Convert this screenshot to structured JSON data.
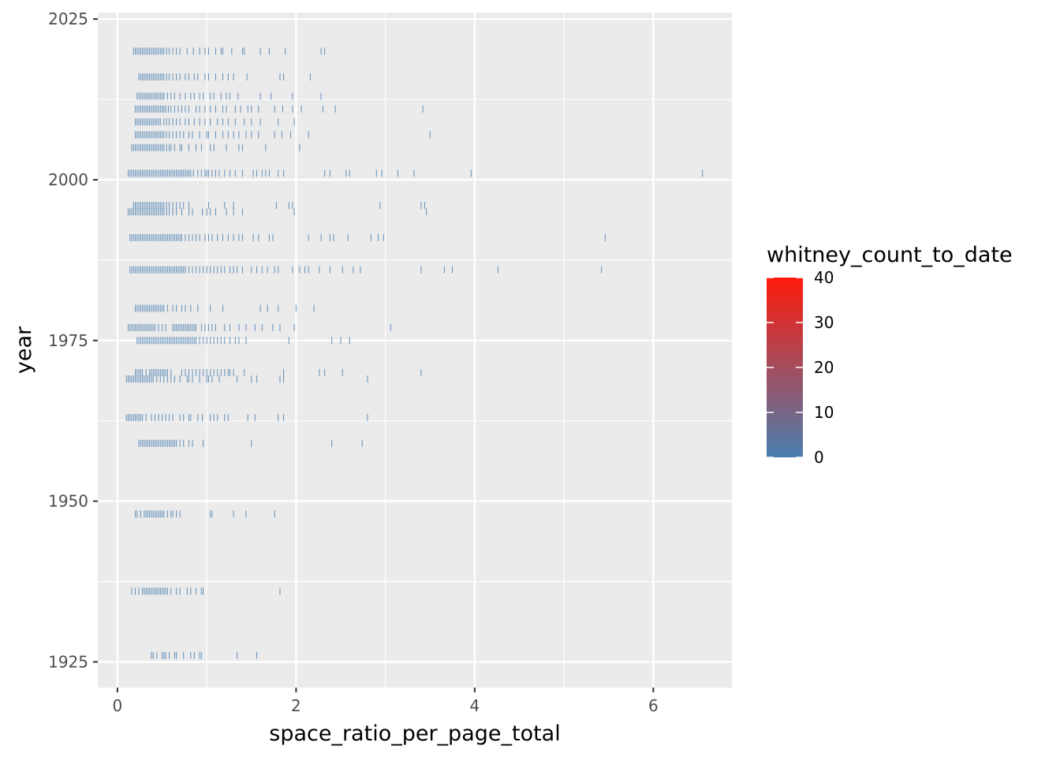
{
  "chart_data": {
    "type": "scatter",
    "mark": "vertical tick",
    "xlabel": "space_ratio_per_page_total",
    "ylabel": "year",
    "xlim": [
      -0.22,
      6.88
    ],
    "ylim": [
      1921,
      2026
    ],
    "x_ticks": [
      0,
      2,
      4,
      6
    ],
    "x_tick_labels": [
      "0",
      "2",
      "4",
      "6"
    ],
    "y_ticks": [
      1925,
      1950,
      1975,
      2000,
      2025
    ],
    "y_tick_labels": [
      "1925",
      "1950",
      "1975",
      "2000",
      "2025"
    ],
    "grid": true,
    "color_scale": {
      "title": "whitney_count_to_date",
      "low": 0,
      "high": 40,
      "low_color": "#4a7fb0",
      "high_color": "#ff1a0a",
      "ticks": [
        0,
        10,
        20,
        30,
        40
      ],
      "tick_labels": [
        "0",
        "10",
        "20",
        "30",
        "40"
      ],
      "legend_position": "right"
    },
    "series": [
      {
        "year": 2020,
        "x": [
          0.18,
          0.2,
          0.22,
          0.24,
          0.26,
          0.28,
          0.3,
          0.32,
          0.34,
          0.36,
          0.38,
          0.4,
          0.42,
          0.44,
          0.46,
          0.48,
          0.5,
          0.52,
          0.55,
          0.58,
          0.62,
          0.66,
          0.7,
          0.78,
          0.85,
          0.92,
          0.98,
          1.02,
          1.1,
          1.16,
          1.18,
          1.28,
          1.4,
          1.42,
          1.6,
          1.7,
          1.88,
          2.28,
          2.32
        ]
      },
      {
        "year": 2016,
        "x": [
          0.24,
          0.26,
          0.28,
          0.3,
          0.32,
          0.34,
          0.36,
          0.38,
          0.4,
          0.42,
          0.44,
          0.46,
          0.48,
          0.5,
          0.52,
          0.55,
          0.58,
          0.62,
          0.66,
          0.7,
          0.76,
          0.8,
          0.86,
          0.9,
          0.98,
          1.02,
          1.1,
          1.18,
          1.24,
          1.3,
          1.45,
          1.82,
          1.86,
          2.16
        ]
      },
      {
        "year": 2013,
        "x": [
          0.22,
          0.24,
          0.26,
          0.28,
          0.3,
          0.32,
          0.34,
          0.36,
          0.38,
          0.4,
          0.42,
          0.44,
          0.46,
          0.48,
          0.5,
          0.52,
          0.56,
          0.6,
          0.64,
          0.7,
          0.76,
          0.82,
          0.86,
          0.92,
          0.96,
          1.04,
          1.08,
          1.16,
          1.22,
          1.26,
          1.35,
          1.6,
          1.72,
          1.96,
          2.28
        ]
      },
      {
        "year": 2011,
        "x": [
          0.2,
          0.22,
          0.24,
          0.26,
          0.28,
          0.3,
          0.32,
          0.34,
          0.36,
          0.38,
          0.4,
          0.42,
          0.44,
          0.46,
          0.48,
          0.5,
          0.52,
          0.54,
          0.57,
          0.6,
          0.64,
          0.68,
          0.72,
          0.76,
          0.8,
          0.88,
          0.92,
          0.98,
          1.04,
          1.1,
          1.18,
          1.22,
          1.32,
          1.38,
          1.46,
          1.5,
          1.58,
          1.76,
          1.85,
          1.96,
          2.06,
          2.3,
          2.44,
          3.42
        ]
      },
      {
        "year": 2009,
        "x": [
          0.2,
          0.22,
          0.24,
          0.26,
          0.28,
          0.3,
          0.32,
          0.34,
          0.36,
          0.38,
          0.4,
          0.42,
          0.44,
          0.46,
          0.48,
          0.52,
          0.55,
          0.58,
          0.62,
          0.66,
          0.7,
          0.76,
          0.8,
          0.86,
          0.92,
          0.98,
          1.04,
          1.12,
          1.18,
          1.24,
          1.32,
          1.42,
          1.5,
          1.6,
          1.8,
          1.98
        ]
      },
      {
        "year": 2007,
        "x": [
          0.2,
          0.22,
          0.24,
          0.26,
          0.28,
          0.3,
          0.32,
          0.34,
          0.36,
          0.38,
          0.4,
          0.42,
          0.44,
          0.46,
          0.48,
          0.5,
          0.52,
          0.55,
          0.58,
          0.62,
          0.66,
          0.7,
          0.74,
          0.8,
          0.84,
          0.92,
          1.0,
          1.02,
          1.1,
          1.18,
          1.24,
          1.3,
          1.36,
          1.44,
          1.5,
          1.58,
          1.76,
          1.84,
          1.94,
          2.14,
          3.5
        ]
      },
      {
        "year": 2005,
        "x": [
          0.16,
          0.18,
          0.2,
          0.22,
          0.24,
          0.26,
          0.28,
          0.3,
          0.32,
          0.34,
          0.36,
          0.38,
          0.4,
          0.42,
          0.44,
          0.46,
          0.48,
          0.5,
          0.52,
          0.55,
          0.58,
          0.6,
          0.64,
          0.7,
          0.72,
          0.8,
          0.88,
          0.94,
          1.04,
          1.08,
          1.22,
          1.36,
          1.4,
          1.66,
          2.04
        ]
      },
      {
        "year": 2001,
        "x": [
          0.12,
          0.14,
          0.16,
          0.18,
          0.2,
          0.22,
          0.24,
          0.26,
          0.28,
          0.3,
          0.32,
          0.34,
          0.36,
          0.38,
          0.4,
          0.42,
          0.44,
          0.46,
          0.48,
          0.5,
          0.52,
          0.54,
          0.56,
          0.58,
          0.6,
          0.62,
          0.64,
          0.66,
          0.68,
          0.7,
          0.72,
          0.74,
          0.76,
          0.78,
          0.8,
          0.82,
          0.85,
          0.9,
          0.94,
          0.98,
          1.0,
          1.02,
          1.06,
          1.1,
          1.14,
          1.2,
          1.26,
          1.32,
          1.4,
          1.52,
          1.56,
          1.62,
          1.66,
          1.7,
          1.8,
          1.86,
          2.32,
          2.38,
          2.56,
          2.6,
          2.9,
          2.96,
          3.14,
          3.32,
          3.96,
          6.55
        ]
      },
      {
        "year": 1996,
        "x": [
          0.18,
          0.2,
          0.22,
          0.24,
          0.26,
          0.28,
          0.3,
          0.32,
          0.34,
          0.36,
          0.38,
          0.4,
          0.42,
          0.44,
          0.46,
          0.48,
          0.5,
          0.52,
          0.55,
          0.58,
          0.62,
          0.66,
          0.7,
          0.74,
          0.8,
          1.02,
          1.2,
          1.3,
          1.78,
          1.92,
          1.96,
          2.94,
          3.4,
          3.44
        ]
      },
      {
        "year": 1995,
        "x": [
          0.12,
          0.14,
          0.16,
          0.18,
          0.2,
          0.22,
          0.24,
          0.26,
          0.28,
          0.3,
          0.32,
          0.34,
          0.36,
          0.38,
          0.4,
          0.42,
          0.44,
          0.46,
          0.48,
          0.5,
          0.52,
          0.55,
          0.58,
          0.62,
          0.66,
          0.72,
          0.8,
          0.84,
          0.95,
          1.0,
          1.04,
          1.1,
          1.22,
          1.3,
          1.4,
          1.98,
          3.46
        ]
      },
      {
        "year": 1991,
        "x": [
          0.14,
          0.16,
          0.18,
          0.2,
          0.22,
          0.24,
          0.26,
          0.28,
          0.3,
          0.32,
          0.34,
          0.36,
          0.38,
          0.4,
          0.42,
          0.44,
          0.46,
          0.48,
          0.5,
          0.52,
          0.54,
          0.56,
          0.58,
          0.6,
          0.62,
          0.64,
          0.66,
          0.68,
          0.7,
          0.72,
          0.76,
          0.8,
          0.84,
          0.88,
          0.92,
          0.98,
          1.02,
          1.06,
          1.12,
          1.18,
          1.24,
          1.3,
          1.36,
          1.4,
          1.52,
          1.58,
          1.7,
          1.74,
          2.14,
          2.28,
          2.38,
          2.42,
          2.58,
          2.84,
          2.92,
          2.98,
          5.46
        ]
      },
      {
        "year": 1986,
        "x": [
          0.14,
          0.16,
          0.18,
          0.2,
          0.22,
          0.24,
          0.26,
          0.28,
          0.3,
          0.32,
          0.34,
          0.36,
          0.38,
          0.4,
          0.42,
          0.44,
          0.46,
          0.48,
          0.5,
          0.52,
          0.54,
          0.56,
          0.58,
          0.6,
          0.62,
          0.64,
          0.66,
          0.68,
          0.7,
          0.72,
          0.74,
          0.76,
          0.8,
          0.84,
          0.88,
          0.92,
          0.96,
          1.0,
          1.04,
          1.08,
          1.12,
          1.16,
          1.2,
          1.26,
          1.3,
          1.34,
          1.4,
          1.5,
          1.56,
          1.62,
          1.68,
          1.76,
          1.8,
          1.96,
          2.04,
          2.1,
          2.14,
          2.26,
          2.38,
          2.52,
          2.64,
          2.72,
          3.4,
          3.66,
          3.75,
          4.26,
          5.42
        ]
      },
      {
        "year": 1980,
        "x": [
          0.2,
          0.22,
          0.24,
          0.26,
          0.28,
          0.3,
          0.32,
          0.34,
          0.36,
          0.38,
          0.4,
          0.42,
          0.44,
          0.46,
          0.48,
          0.5,
          0.52,
          0.56,
          0.62,
          0.66,
          0.72,
          0.76,
          0.82,
          0.9,
          1.04,
          1.18,
          1.6,
          1.68,
          1.8,
          2.0,
          2.2
        ]
      },
      {
        "year": 1977,
        "x": [
          0.12,
          0.14,
          0.16,
          0.18,
          0.2,
          0.22,
          0.24,
          0.26,
          0.28,
          0.3,
          0.32,
          0.34,
          0.36,
          0.38,
          0.4,
          0.42,
          0.46,
          0.5,
          0.54,
          0.62,
          0.64,
          0.66,
          0.68,
          0.7,
          0.72,
          0.74,
          0.76,
          0.78,
          0.8,
          0.82,
          0.84,
          0.86,
          0.88,
          0.94,
          0.98,
          1.02,
          1.06,
          1.1,
          1.2,
          1.26,
          1.36,
          1.44,
          1.54,
          1.62,
          1.74,
          1.82,
          1.98,
          3.06
        ]
      },
      {
        "year": 1975,
        "x": [
          0.22,
          0.24,
          0.26,
          0.28,
          0.3,
          0.32,
          0.34,
          0.36,
          0.38,
          0.4,
          0.42,
          0.44,
          0.46,
          0.48,
          0.5,
          0.52,
          0.54,
          0.56,
          0.58,
          0.6,
          0.62,
          0.64,
          0.66,
          0.68,
          0.7,
          0.72,
          0.74,
          0.76,
          0.78,
          0.8,
          0.82,
          0.84,
          0.86,
          0.88,
          0.92,
          0.96,
          1.0,
          1.04,
          1.08,
          1.12,
          1.16,
          1.2,
          1.26,
          1.32,
          1.36,
          1.44,
          1.92,
          2.4,
          2.5,
          2.6
        ]
      },
      {
        "year": 1970,
        "x": [
          0.2,
          0.22,
          0.24,
          0.26,
          0.28,
          0.32,
          0.36,
          0.38,
          0.4,
          0.42,
          0.44,
          0.46,
          0.48,
          0.5,
          0.52,
          0.54,
          0.56,
          0.6,
          0.72,
          0.76,
          0.8,
          0.84,
          0.88,
          0.92,
          0.96,
          1.0,
          1.04,
          1.08,
          1.12,
          1.16,
          1.2,
          1.24,
          1.26,
          1.3,
          1.42,
          1.86,
          2.26,
          2.32,
          2.52,
          3.4
        ]
      },
      {
        "year": 1969,
        "x": [
          0.1,
          0.12,
          0.14,
          0.16,
          0.18,
          0.2,
          0.22,
          0.24,
          0.26,
          0.28,
          0.3,
          0.32,
          0.34,
          0.36,
          0.38,
          0.4,
          0.44,
          0.48,
          0.52,
          0.56,
          0.6,
          0.64,
          0.7,
          0.78,
          0.8,
          0.84,
          0.92,
          1.0,
          1.02,
          1.06,
          1.14,
          1.34,
          1.5,
          1.56,
          1.82,
          1.86,
          2.8
        ]
      },
      {
        "year": 1963,
        "x": [
          0.1,
          0.12,
          0.14,
          0.16,
          0.18,
          0.2,
          0.22,
          0.24,
          0.26,
          0.28,
          0.32,
          0.38,
          0.42,
          0.46,
          0.5,
          0.54,
          0.58,
          0.62,
          0.7,
          0.74,
          0.8,
          0.82,
          0.9,
          0.95,
          1.04,
          1.08,
          1.12,
          1.2,
          1.24,
          1.46,
          1.54,
          1.8,
          1.86,
          2.8
        ]
      },
      {
        "year": 1959,
        "x": [
          0.24,
          0.26,
          0.28,
          0.3,
          0.32,
          0.34,
          0.36,
          0.38,
          0.4,
          0.42,
          0.44,
          0.46,
          0.48,
          0.5,
          0.52,
          0.54,
          0.56,
          0.58,
          0.6,
          0.62,
          0.64,
          0.66,
          0.7,
          0.74,
          0.8,
          0.84,
          0.96,
          1.5,
          2.4,
          2.74
        ]
      },
      {
        "year": 1948,
        "x": [
          0.2,
          0.22,
          0.26,
          0.3,
          0.32,
          0.34,
          0.36,
          0.38,
          0.4,
          0.42,
          0.44,
          0.46,
          0.48,
          0.5,
          0.52,
          0.56,
          0.6,
          0.62,
          0.66,
          0.7,
          1.04,
          1.06,
          1.3,
          1.44,
          1.76
        ]
      },
      {
        "year": 1936,
        "x": [
          0.16,
          0.2,
          0.24,
          0.28,
          0.3,
          0.32,
          0.34,
          0.36,
          0.38,
          0.4,
          0.42,
          0.44,
          0.46,
          0.48,
          0.5,
          0.52,
          0.54,
          0.56,
          0.6,
          0.66,
          0.7,
          0.78,
          0.82,
          0.88,
          0.94,
          0.96,
          1.82
        ]
      },
      {
        "year": 1926,
        "x": [
          0.38,
          0.4,
          0.44,
          0.5,
          0.52,
          0.54,
          0.58,
          0.64,
          0.66,
          0.74,
          0.82,
          0.86,
          0.92,
          0.94,
          1.34,
          1.56
        ]
      }
    ]
  }
}
